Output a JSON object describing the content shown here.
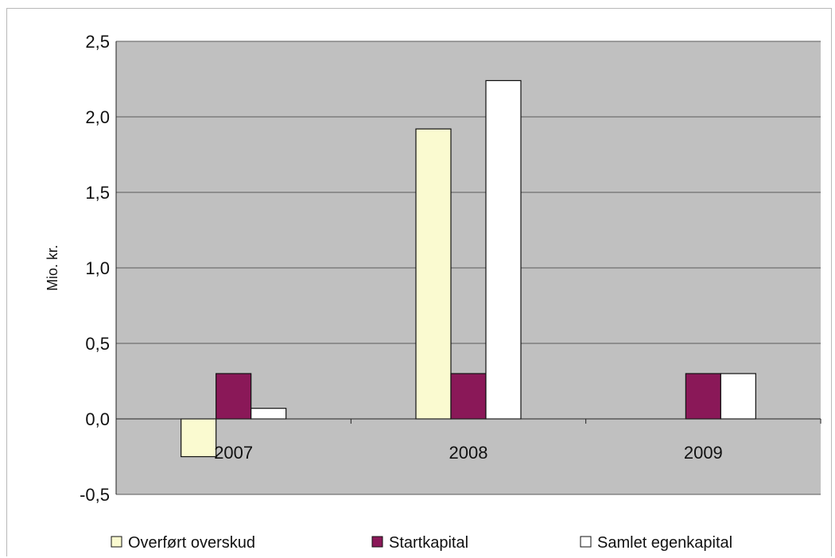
{
  "chart_data": {
    "type": "bar",
    "categories": [
      "2007",
      "2008",
      "2009"
    ],
    "series": [
      {
        "name": "Overført overskud",
        "values": [
          -0.25,
          1.92,
          0.0
        ],
        "color": "#fafad0"
      },
      {
        "name": "Startkapital",
        "values": [
          0.3,
          0.3,
          0.3
        ],
        "color": "#8a1858"
      },
      {
        "name": "Samlet egenkapital",
        "values": [
          0.07,
          2.24,
          0.3
        ],
        "color": "#ffffff"
      }
    ],
    "ylabel": "Mio. kr.",
    "ylim": [
      -0.5,
      2.5
    ],
    "yticks": [
      "2,5",
      "2,0",
      "1,5",
      "1,0",
      "0,5",
      "0,0",
      "-0,5"
    ],
    "ytick_values": [
      2.5,
      2.0,
      1.5,
      1.0,
      0.5,
      0.0,
      -0.5
    ],
    "plot_background": "#c0c0c0",
    "grid": true,
    "legend": "bottom"
  }
}
